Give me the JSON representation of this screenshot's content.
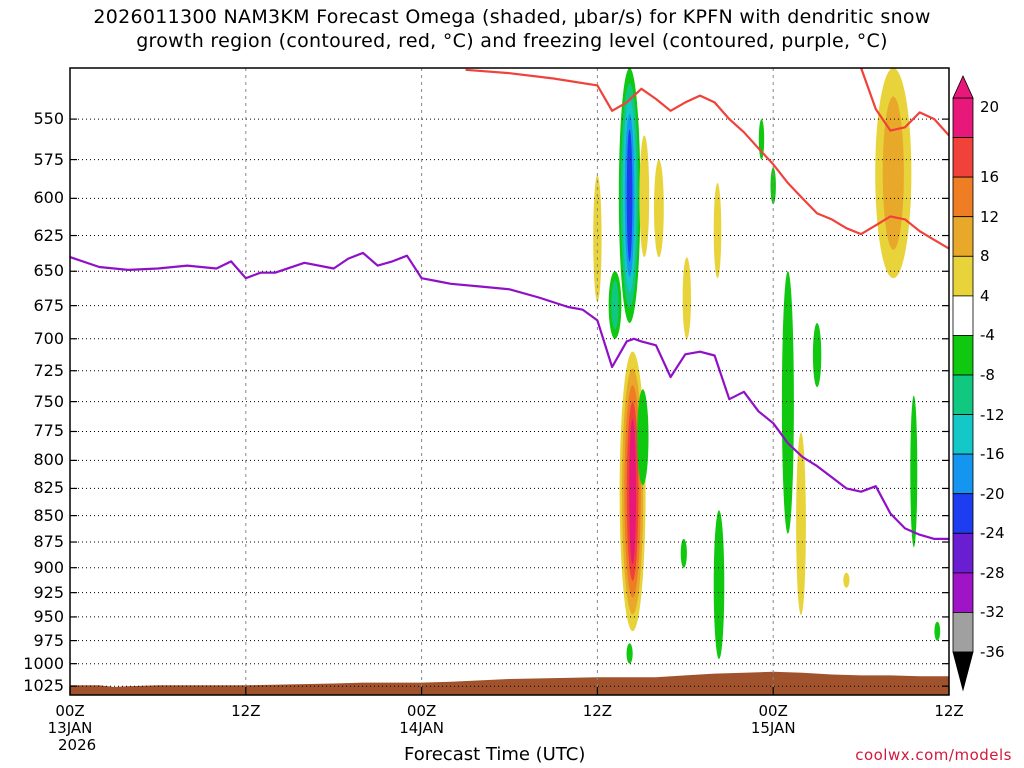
{
  "title": {
    "line1": "2026011300 NAM3KM Forecast Omega (shaded, μbar/s) for KPFN with dendritic snow",
    "line2": "growth region (contoured, red, °C) and freezing level (contoured, purple, °C)"
  },
  "credit": "coolwx.com/models",
  "colors": {
    "dgz_contour": "#f0413a",
    "freezing_contour": "#9010c8",
    "terrain": "#a0522d",
    "grid": "#888888"
  },
  "chart_data": {
    "type": "heatmap",
    "xlabel": "Forecast Time (UTC)",
    "ylabel": "",
    "x_range_hours": [
      0,
      60
    ],
    "y_range_hpa": [
      1035,
      520
    ],
    "y_scale": "log",
    "grid": true,
    "y_ticks": [
      550,
      575,
      600,
      625,
      650,
      675,
      700,
      725,
      750,
      775,
      800,
      825,
      850,
      875,
      900,
      925,
      950,
      975,
      1000,
      1025
    ],
    "x_ticks": [
      {
        "hour": 0,
        "lines": [
          "00Z",
          "13JAN",
          "2026"
        ]
      },
      {
        "hour": 12,
        "lines": [
          "12Z",
          "",
          ""
        ]
      },
      {
        "hour": 24,
        "lines": [
          "00Z",
          "14JAN",
          ""
        ]
      },
      {
        "hour": 36,
        "lines": [
          "12Z",
          "",
          ""
        ]
      },
      {
        "hour": 48,
        "lines": [
          "00Z",
          "15JAN",
          ""
        ]
      },
      {
        "hour": 60,
        "lines": [
          "12Z",
          "",
          ""
        ]
      }
    ],
    "colorbar": {
      "labels": [
        "20",
        "16",
        "12",
        "8",
        "4",
        "-4",
        "-8",
        "-12",
        "-16",
        "-20",
        "-24",
        "-28",
        "-32",
        "-36"
      ],
      "bands": [
        {
          "lo": 20,
          "hi": 24,
          "color": "#e8177a"
        },
        {
          "lo": 16,
          "hi": 20,
          "color": "#f0413a"
        },
        {
          "lo": 12,
          "hi": 16,
          "color": "#ee7d24"
        },
        {
          "lo": 8,
          "hi": 12,
          "color": "#e8a92a"
        },
        {
          "lo": 4,
          "hi": 8,
          "color": "#e8d43a"
        },
        {
          "lo": -4,
          "hi": 4,
          "color": "#ffffff"
        },
        {
          "lo": -8,
          "hi": -4,
          "color": "#10c810"
        },
        {
          "lo": -12,
          "hi": -8,
          "color": "#10c880"
        },
        {
          "lo": -16,
          "hi": -12,
          "color": "#14c8c8"
        },
        {
          "lo": -20,
          "hi": -16,
          "color": "#1496f0"
        },
        {
          "lo": -24,
          "hi": -20,
          "color": "#1e3cf0"
        },
        {
          "lo": -28,
          "hi": -24,
          "color": "#6a1ed2"
        },
        {
          "lo": -32,
          "hi": -28,
          "color": "#a014c8"
        },
        {
          "lo": -36,
          "hi": -32,
          "color": "#a0a0a0"
        }
      ]
    },
    "freezing_level_hpa": {
      "hours": [
        0,
        2,
        4,
        6,
        8,
        10,
        11,
        12,
        13,
        14,
        16,
        18,
        19,
        20,
        21,
        22,
        23,
        24,
        25,
        26,
        28,
        30,
        32,
        34,
        35,
        36,
        37,
        38,
        38.5,
        39,
        40,
        41,
        42,
        43,
        44,
        45,
        46,
        47,
        48,
        49,
        50,
        51,
        52,
        53,
        54,
        55,
        56,
        57,
        58,
        59,
        60
      ],
      "values": [
        640,
        647,
        649,
        648,
        646,
        648,
        643,
        655,
        651,
        651,
        644,
        648,
        641,
        637,
        646,
        643,
        639,
        655,
        657,
        659,
        661,
        663,
        669,
        676,
        678,
        686,
        722,
        702,
        700,
        702,
        705,
        730,
        712,
        710,
        713,
        748,
        742,
        758,
        768,
        785,
        797,
        805,
        815,
        825,
        828,
        823,
        848,
        862,
        868,
        872,
        872
      ]
    },
    "dgz_top_contour_hpa": {
      "hours": [
        27,
        30,
        33,
        36,
        37,
        38,
        39,
        40,
        41,
        42,
        43,
        44,
        45,
        46,
        47,
        48,
        49,
        50,
        51,
        52,
        53,
        54,
        55,
        56,
        57,
        58,
        59,
        60
      ],
      "values": [
        521,
        523,
        526,
        530,
        545,
        540,
        532,
        538,
        545,
        540,
        536,
        540,
        550,
        558,
        568,
        578,
        590,
        600,
        610,
        614,
        620,
        624,
        618,
        612,
        614,
        622,
        628,
        634
      ]
    },
    "dgz_upper_contour_hpa": {
      "hours": [
        54,
        55,
        56,
        57,
        58,
        59,
        60
      ],
      "values": [
        520,
        544,
        557,
        555,
        546,
        550,
        560
      ]
    },
    "omega_cells": [
      {
        "hour": 38.2,
        "top_hpa": 520,
        "bottom_hpa": 688,
        "width_h": 1.2,
        "levels": [
          -4,
          -8,
          -12,
          -16,
          -20
        ]
      },
      {
        "hour": 37.2,
        "top_hpa": 650,
        "bottom_hpa": 700,
        "width_h": 0.6,
        "levels": [
          -4,
          -8
        ]
      },
      {
        "hour": 36.0,
        "top_hpa": 585,
        "bottom_hpa": 672,
        "width_h": 0.3,
        "levels": [
          4
        ]
      },
      {
        "hour": 38.4,
        "top_hpa": 710,
        "bottom_hpa": 965,
        "width_h": 1.5,
        "levels": [
          4,
          8,
          12,
          16,
          20
        ]
      },
      {
        "hour": 39.1,
        "top_hpa": 740,
        "bottom_hpa": 822,
        "width_h": 0.5,
        "levels": [
          -4
        ]
      },
      {
        "hour": 39.2,
        "top_hpa": 560,
        "bottom_hpa": 640,
        "width_h": 0.4,
        "levels": [
          4
        ]
      },
      {
        "hour": 40.2,
        "top_hpa": 575,
        "bottom_hpa": 640,
        "width_h": 0.4,
        "levels": [
          4
        ]
      },
      {
        "hour": 42.1,
        "top_hpa": 640,
        "bottom_hpa": 700,
        "width_h": 0.3,
        "levels": [
          4
        ]
      },
      {
        "hour": 44.2,
        "top_hpa": 590,
        "bottom_hpa": 655,
        "width_h": 0.25,
        "levels": [
          4
        ]
      },
      {
        "hour": 38.2,
        "top_hpa": 978,
        "bottom_hpa": 1000,
        "width_h": 0.15,
        "levels": [
          -4
        ]
      },
      {
        "hour": 41.9,
        "top_hpa": 872,
        "bottom_hpa": 900,
        "width_h": 0.15,
        "levels": [
          -4
        ]
      },
      {
        "hour": 44.3,
        "top_hpa": 845,
        "bottom_hpa": 995,
        "width_h": 0.45,
        "levels": [
          -4
        ]
      },
      {
        "hour": 47.2,
        "top_hpa": 550,
        "bottom_hpa": 575,
        "width_h": 0.1,
        "levels": [
          -4
        ]
      },
      {
        "hour": 48.0,
        "top_hpa": 580,
        "bottom_hpa": 604,
        "width_h": 0.1,
        "levels": [
          -4
        ]
      },
      {
        "hour": 49.0,
        "top_hpa": 650,
        "bottom_hpa": 867,
        "width_h": 0.55,
        "levels": [
          -4
        ]
      },
      {
        "hour": 51.0,
        "top_hpa": 688,
        "bottom_hpa": 738,
        "width_h": 0.3,
        "levels": [
          -4
        ]
      },
      {
        "hour": 49.9,
        "top_hpa": 776,
        "bottom_hpa": 948,
        "width_h": 0.4,
        "levels": [
          4
        ]
      },
      {
        "hour": 53.0,
        "top_hpa": 905,
        "bottom_hpa": 920,
        "width_h": 0.15,
        "levels": [
          4
        ]
      },
      {
        "hour": 56.2,
        "top_hpa": 520,
        "bottom_hpa": 655,
        "width_h": 2.2,
        "levels": [
          4,
          8
        ]
      },
      {
        "hour": 57.6,
        "top_hpa": 745,
        "bottom_hpa": 880,
        "width_h": 0.2,
        "levels": [
          -4
        ]
      },
      {
        "hour": 59.2,
        "top_hpa": 955,
        "bottom_hpa": 975,
        "width_h": 0.12,
        "levels": [
          -4
        ]
      }
    ],
    "surface_pressure_hpa": {
      "hours": [
        0,
        2,
        3,
        4,
        6,
        12,
        18,
        20,
        24,
        26,
        30,
        33,
        36,
        40,
        42,
        44,
        46,
        48,
        50,
        52,
        54,
        56,
        58,
        60
      ],
      "values": [
        1024,
        1024,
        1026,
        1025,
        1024,
        1024,
        1022,
        1021,
        1021,
        1020,
        1017,
        1016,
        1015,
        1015,
        1013,
        1011,
        1010,
        1009,
        1010,
        1012,
        1013,
        1013,
        1014,
        1014
      ]
    }
  }
}
